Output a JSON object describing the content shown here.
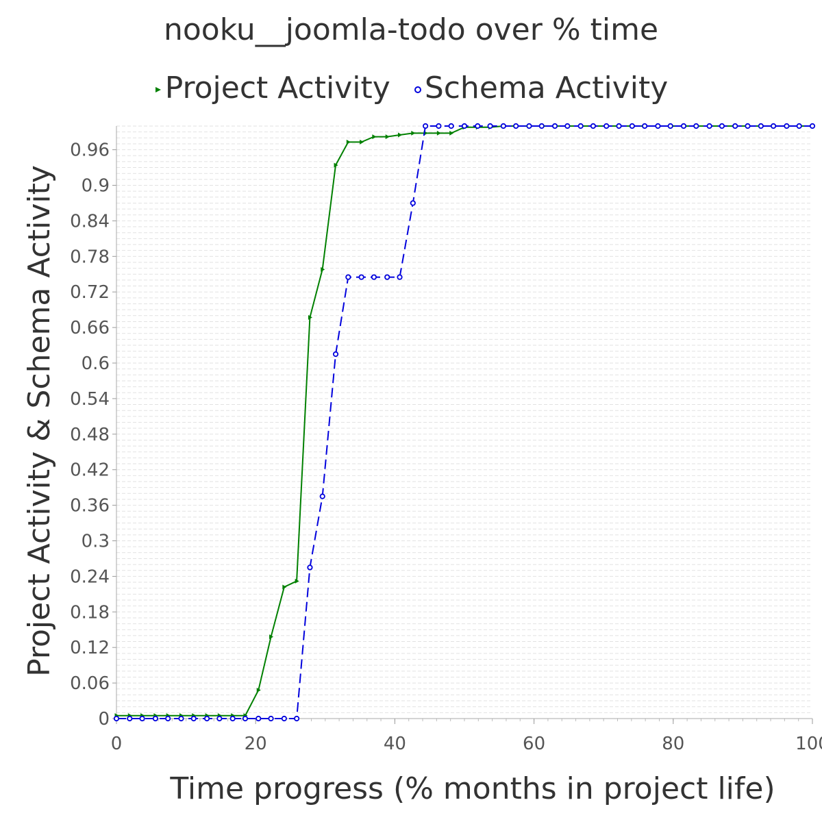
{
  "chart_data": {
    "type": "line",
    "title": "nooku__joomla-todo over % time",
    "xlabel": "Time progress (% months in project life)",
    "ylabel": "Project Activity & Schema Activity",
    "xlim": [
      0,
      100
    ],
    "ylim": [
      0,
      1
    ],
    "x_ticks": [
      "0",
      "20",
      "40",
      "60",
      "80",
      "100"
    ],
    "y_ticks": [
      "0",
      "0.06",
      "0.12",
      "0.18",
      "0.24",
      "0.3",
      "0.36",
      "0.42",
      "0.48",
      "0.54",
      "0.6",
      "0.66",
      "0.72",
      "0.78",
      "0.84",
      "0.9",
      "0.96"
    ],
    "grid": true,
    "legend_position": "top-center",
    "series": [
      {
        "name": "Project Activity",
        "color": "#008000",
        "line_style": "solid",
        "marker": "triangle-right",
        "points": [
          [
            0,
            0.005
          ],
          [
            1.9,
            0.005
          ],
          [
            3.7,
            0.005
          ],
          [
            5.6,
            0.005
          ],
          [
            7.4,
            0.005
          ],
          [
            9.3,
            0.005
          ],
          [
            11.1,
            0.005
          ],
          [
            13.0,
            0.005
          ],
          [
            14.8,
            0.005
          ],
          [
            16.7,
            0.005
          ],
          [
            18.5,
            0.005
          ],
          [
            20.4,
            0.048
          ],
          [
            22.2,
            0.138
          ],
          [
            24.1,
            0.222
          ],
          [
            25.9,
            0.232
          ],
          [
            27.8,
            0.677
          ],
          [
            29.6,
            0.758
          ],
          [
            31.5,
            0.934
          ],
          [
            33.3,
            0.973
          ],
          [
            35.2,
            0.973
          ],
          [
            37.0,
            0.982
          ],
          [
            38.9,
            0.982
          ],
          [
            40.7,
            0.985
          ],
          [
            42.6,
            0.988
          ],
          [
            44.4,
            0.988
          ],
          [
            46.3,
            0.988
          ],
          [
            48.1,
            0.988
          ],
          [
            50.0,
            0.998
          ],
          [
            51.9,
            0.998
          ],
          [
            53.7,
            0.998
          ],
          [
            55.6,
            1.0
          ],
          [
            57.4,
            1.0
          ],
          [
            59.3,
            1.0
          ],
          [
            61.1,
            1.0
          ],
          [
            63.0,
            1.0
          ],
          [
            64.8,
            1.0
          ],
          [
            66.7,
            1.0
          ],
          [
            68.5,
            1.0
          ],
          [
            70.4,
            1.0
          ],
          [
            72.2,
            1.0
          ],
          [
            74.1,
            1.0
          ],
          [
            75.9,
            1.0
          ],
          [
            77.8,
            1.0
          ],
          [
            79.6,
            1.0
          ],
          [
            81.5,
            1.0
          ],
          [
            83.3,
            1.0
          ],
          [
            85.2,
            1.0
          ],
          [
            87.0,
            1.0
          ],
          [
            88.9,
            1.0
          ],
          [
            90.7,
            1.0
          ],
          [
            92.6,
            1.0
          ],
          [
            94.4,
            1.0
          ],
          [
            96.3,
            1.0
          ],
          [
            98.1,
            1.0
          ],
          [
            100,
            1.0
          ]
        ]
      },
      {
        "name": "Schema Activity",
        "color": "#0000dd",
        "line_style": "dashed",
        "marker": "circle",
        "points": [
          [
            0,
            0.0
          ],
          [
            1.9,
            0.0
          ],
          [
            3.7,
            0.0
          ],
          [
            5.6,
            0.0
          ],
          [
            7.4,
            0.0
          ],
          [
            9.3,
            0.0
          ],
          [
            11.1,
            0.0
          ],
          [
            13.0,
            0.0
          ],
          [
            14.8,
            0.0
          ],
          [
            16.7,
            0.0
          ],
          [
            18.5,
            0.0
          ],
          [
            20.4,
            0.0
          ],
          [
            22.2,
            0.0
          ],
          [
            24.1,
            0.0
          ],
          [
            25.9,
            0.0
          ],
          [
            27.8,
            0.255
          ],
          [
            29.6,
            0.375
          ],
          [
            31.5,
            0.615
          ],
          [
            33.3,
            0.745
          ],
          [
            35.2,
            0.745
          ],
          [
            37.0,
            0.745
          ],
          [
            38.9,
            0.745
          ],
          [
            40.7,
            0.745
          ],
          [
            42.6,
            0.87
          ],
          [
            44.4,
            1.0
          ],
          [
            46.3,
            1.0
          ],
          [
            48.1,
            1.0
          ],
          [
            50.0,
            1.0
          ],
          [
            51.9,
            1.0
          ],
          [
            53.7,
            1.0
          ],
          [
            55.6,
            1.0
          ],
          [
            57.4,
            1.0
          ],
          [
            59.3,
            1.0
          ],
          [
            61.1,
            1.0
          ],
          [
            63.0,
            1.0
          ],
          [
            64.8,
            1.0
          ],
          [
            66.7,
            1.0
          ],
          [
            68.5,
            1.0
          ],
          [
            70.4,
            1.0
          ],
          [
            72.2,
            1.0
          ],
          [
            74.1,
            1.0
          ],
          [
            75.9,
            1.0
          ],
          [
            77.8,
            1.0
          ],
          [
            79.6,
            1.0
          ],
          [
            81.5,
            1.0
          ],
          [
            83.3,
            1.0
          ],
          [
            85.2,
            1.0
          ],
          [
            87.0,
            1.0
          ],
          [
            88.9,
            1.0
          ],
          [
            90.7,
            1.0
          ],
          [
            92.6,
            1.0
          ],
          [
            94.4,
            1.0
          ],
          [
            96.3,
            1.0
          ],
          [
            98.1,
            1.0
          ],
          [
            100,
            1.0
          ]
        ]
      }
    ]
  }
}
